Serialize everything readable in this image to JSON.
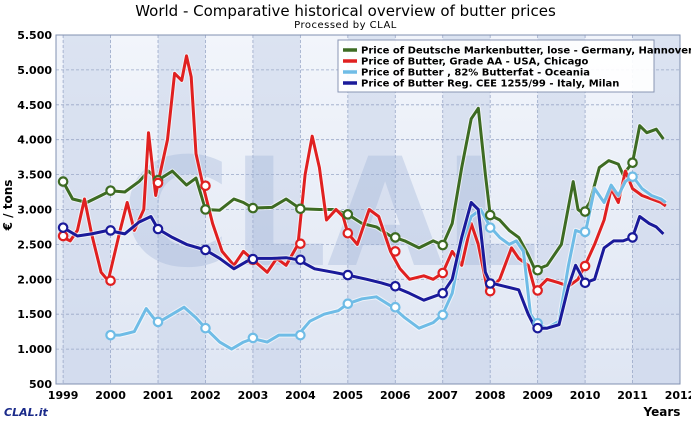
{
  "header": {
    "title": "World - Comparative historical overview of butter prices",
    "subtitle": "Processed by CLAL"
  },
  "logo_text": "CLAL.it",
  "chart_data": {
    "type": "line",
    "title": "World - Comparative historical overview of butter prices",
    "subtitle": "Processed by CLAL",
    "ylabel": "€ / tons",
    "xlabel": "Years",
    "xlim": [
      1998.85,
      2012.0
    ],
    "ylim": [
      500,
      5500
    ],
    "x_ticks": [
      "1999",
      "2000",
      "2001",
      "2002",
      "2003",
      "2004",
      "2005",
      "2006",
      "2007",
      "2008",
      "2009",
      "2010",
      "2011",
      "2012"
    ],
    "y_ticks": [
      "500",
      "1.000",
      "1.500",
      "2.000",
      "2.500",
      "3.000",
      "3.500",
      "4.000",
      "4.500",
      "5.000",
      "5.500"
    ],
    "grid": true,
    "legend_position": "top-right",
    "series": [
      {
        "name": "Price of Deutsche Markenbutter, lose - Germany, Hannover",
        "color": "#3d6b22",
        "points": [
          [
            1999.0,
            3400
          ],
          [
            1999.2,
            3150
          ],
          [
            1999.5,
            3100
          ],
          [
            1999.8,
            3200
          ],
          [
            2000.0,
            3270
          ],
          [
            2000.3,
            3250
          ],
          [
            2000.6,
            3400
          ],
          [
            2000.8,
            3550
          ],
          [
            2001.0,
            3420
          ],
          [
            2001.3,
            3550
          ],
          [
            2001.6,
            3350
          ],
          [
            2001.8,
            3450
          ],
          [
            2002.0,
            3000
          ],
          [
            2002.3,
            2990
          ],
          [
            2002.6,
            3150
          ],
          [
            2002.8,
            3100
          ],
          [
            2003.0,
            3020
          ],
          [
            2003.4,
            3030
          ],
          [
            2003.7,
            3150
          ],
          [
            2004.0,
            3010
          ],
          [
            2004.4,
            3000
          ],
          [
            2004.7,
            3000
          ],
          [
            2005.0,
            2930
          ],
          [
            2005.3,
            2800
          ],
          [
            2005.6,
            2750
          ],
          [
            2005.9,
            2620
          ],
          [
            2006.2,
            2550
          ],
          [
            2006.5,
            2450
          ],
          [
            2006.8,
            2550
          ],
          [
            2007.0,
            2490
          ],
          [
            2007.2,
            2800
          ],
          [
            2007.4,
            3600
          ],
          [
            2007.6,
            4300
          ],
          [
            2007.75,
            4450
          ],
          [
            2007.9,
            3500
          ],
          [
            2008.0,
            2920
          ],
          [
            2008.2,
            2850
          ],
          [
            2008.4,
            2700
          ],
          [
            2008.6,
            2600
          ],
          [
            2008.8,
            2350
          ],
          [
            2008.95,
            2130
          ],
          [
            2009.2,
            2200
          ],
          [
            2009.5,
            2500
          ],
          [
            2009.75,
            3400
          ],
          [
            2009.85,
            3000
          ],
          [
            2009.95,
            2950
          ],
          [
            2010.1,
            3100
          ],
          [
            2010.3,
            3600
          ],
          [
            2010.5,
            3700
          ],
          [
            2010.7,
            3650
          ],
          [
            2010.8,
            3500
          ],
          [
            2011.0,
            3670
          ],
          [
            2011.15,
            4200
          ],
          [
            2011.3,
            4100
          ],
          [
            2011.5,
            4150
          ],
          [
            2011.65,
            4010
          ]
        ]
      },
      {
        "name": "Price of Butter, Grade AA - USA, Chicago",
        "color": "#e02020",
        "points": [
          [
            1999.0,
            2600
          ],
          [
            1999.15,
            2550
          ],
          [
            1999.3,
            2700
          ],
          [
            1999.45,
            3150
          ],
          [
            1999.6,
            2650
          ],
          [
            1999.8,
            2100
          ],
          [
            1999.95,
            1980
          ],
          [
            2000.2,
            2700
          ],
          [
            2000.35,
            3100
          ],
          [
            2000.5,
            2700
          ],
          [
            2000.7,
            3000
          ],
          [
            2000.8,
            4100
          ],
          [
            2000.95,
            3200
          ],
          [
            2001.0,
            3380
          ],
          [
            2001.2,
            4000
          ],
          [
            2001.35,
            4950
          ],
          [
            2001.5,
            4850
          ],
          [
            2001.6,
            5200
          ],
          [
            2001.7,
            4900
          ],
          [
            2001.8,
            3800
          ],
          [
            2001.95,
            3340
          ],
          [
            2002.15,
            2800
          ],
          [
            2002.35,
            2400
          ],
          [
            2002.6,
            2200
          ],
          [
            2002.8,
            2400
          ],
          [
            2003.0,
            2280
          ],
          [
            2003.3,
            2100
          ],
          [
            2003.5,
            2300
          ],
          [
            2003.7,
            2200
          ],
          [
            2003.95,
            2500
          ],
          [
            2004.1,
            3500
          ],
          [
            2004.25,
            4050
          ],
          [
            2004.4,
            3600
          ],
          [
            2004.55,
            2850
          ],
          [
            2004.75,
            3000
          ],
          [
            2004.9,
            2900
          ],
          [
            2005.0,
            2660
          ],
          [
            2005.2,
            2500
          ],
          [
            2005.45,
            3000
          ],
          [
            2005.65,
            2900
          ],
          [
            2005.9,
            2400
          ],
          [
            2006.1,
            2150
          ],
          [
            2006.3,
            2000
          ],
          [
            2006.6,
            2050
          ],
          [
            2006.8,
            2000
          ],
          [
            2007.0,
            2090
          ],
          [
            2007.2,
            2400
          ],
          [
            2007.4,
            2200
          ],
          [
            2007.6,
            2800
          ],
          [
            2007.75,
            2500
          ],
          [
            2007.95,
            1830
          ],
          [
            2008.2,
            2000
          ],
          [
            2008.45,
            2450
          ],
          [
            2008.6,
            2300
          ],
          [
            2008.8,
            2200
          ],
          [
            2008.95,
            1830
          ],
          [
            2009.2,
            2000
          ],
          [
            2009.45,
            1950
          ],
          [
            2009.65,
            1900
          ],
          [
            2009.85,
            2000
          ],
          [
            2010.0,
            2200
          ],
          [
            2010.2,
            2500
          ],
          [
            2010.4,
            2850
          ],
          [
            2010.55,
            3300
          ],
          [
            2010.7,
            3100
          ],
          [
            2010.85,
            3550
          ],
          [
            2011.0,
            3300
          ],
          [
            2011.2,
            3200
          ],
          [
            2011.4,
            3150
          ],
          [
            2011.6,
            3100
          ],
          [
            2011.7,
            3050
          ]
        ]
      },
      {
        "name": "Price of Butter , 82% Butterfat - Oceania",
        "color": "#6fbce6",
        "points": [
          [
            1999.95,
            1200
          ],
          [
            2000.2,
            1200
          ],
          [
            2000.5,
            1250
          ],
          [
            2000.75,
            1580
          ],
          [
            2000.9,
            1450
          ],
          [
            2001.0,
            1380
          ],
          [
            2001.3,
            1500
          ],
          [
            2001.55,
            1600
          ],
          [
            2001.8,
            1450
          ],
          [
            2002.0,
            1300
          ],
          [
            2002.3,
            1100
          ],
          [
            2002.55,
            1000
          ],
          [
            2002.8,
            1100
          ],
          [
            2003.0,
            1150
          ],
          [
            2003.3,
            1100
          ],
          [
            2003.55,
            1200
          ],
          [
            2003.8,
            1200
          ],
          [
            2003.95,
            1200
          ],
          [
            2004.2,
            1400
          ],
          [
            2004.5,
            1500
          ],
          [
            2004.8,
            1550
          ],
          [
            2005.0,
            1650
          ],
          [
            2005.3,
            1720
          ],
          [
            2005.6,
            1750
          ],
          [
            2005.95,
            1600
          ],
          [
            2006.2,
            1450
          ],
          [
            2006.5,
            1300
          ],
          [
            2006.8,
            1380
          ],
          [
            2007.0,
            1500
          ],
          [
            2007.2,
            1800
          ],
          [
            2007.4,
            2500
          ],
          [
            2007.6,
            2900
          ],
          [
            2007.8,
            3000
          ],
          [
            2008.0,
            2750
          ],
          [
            2008.2,
            2600
          ],
          [
            2008.4,
            2500
          ],
          [
            2008.55,
            2550
          ],
          [
            2008.7,
            2400
          ],
          [
            2008.85,
            1500
          ],
          [
            2009.0,
            1350
          ],
          [
            2009.2,
            1300
          ],
          [
            2009.45,
            1400
          ],
          [
            2009.65,
            2200
          ],
          [
            2009.8,
            2700
          ],
          [
            2010.0,
            2650
          ],
          [
            2010.2,
            3300
          ],
          [
            2010.4,
            3100
          ],
          [
            2010.55,
            3350
          ],
          [
            2010.7,
            3200
          ],
          [
            2010.85,
            3400
          ],
          [
            2011.0,
            3480
          ],
          [
            2011.2,
            3300
          ],
          [
            2011.4,
            3200
          ],
          [
            2011.6,
            3150
          ],
          [
            2011.7,
            3100
          ]
        ]
      },
      {
        "name": "Price of Butter Reg. CEE 1255/99 - Italy, Milan",
        "color": "#1a1a9a",
        "points": [
          [
            1999.0,
            2740
          ],
          [
            1999.3,
            2620
          ],
          [
            1999.6,
            2650
          ],
          [
            1999.95,
            2700
          ],
          [
            2000.3,
            2650
          ],
          [
            2000.6,
            2820
          ],
          [
            2000.85,
            2900
          ],
          [
            2001.0,
            2720
          ],
          [
            2001.3,
            2600
          ],
          [
            2001.6,
            2500
          ],
          [
            2002.0,
            2420
          ],
          [
            2002.3,
            2300
          ],
          [
            2002.6,
            2150
          ],
          [
            2002.85,
            2250
          ],
          [
            2003.0,
            2300
          ],
          [
            2003.4,
            2300
          ],
          [
            2003.7,
            2310
          ],
          [
            2003.95,
            2280
          ],
          [
            2004.3,
            2150
          ],
          [
            2004.7,
            2100
          ],
          [
            2005.0,
            2060
          ],
          [
            2005.4,
            2000
          ],
          [
            2005.7,
            1950
          ],
          [
            2005.95,
            1900
          ],
          [
            2006.3,
            1800
          ],
          [
            2006.6,
            1700
          ],
          [
            2007.0,
            1800
          ],
          [
            2007.2,
            2000
          ],
          [
            2007.4,
            2600
          ],
          [
            2007.6,
            3100
          ],
          [
            2007.75,
            3000
          ],
          [
            2007.9,
            2100
          ],
          [
            2008.0,
            1950
          ],
          [
            2008.3,
            1900
          ],
          [
            2008.6,
            1850
          ],
          [
            2008.8,
            1500
          ],
          [
            2008.95,
            1300
          ],
          [
            2009.2,
            1300
          ],
          [
            2009.45,
            1350
          ],
          [
            2009.65,
            1900
          ],
          [
            2009.8,
            2200
          ],
          [
            2010.0,
            1950
          ],
          [
            2010.2,
            2000
          ],
          [
            2010.4,
            2450
          ],
          [
            2010.6,
            2550
          ],
          [
            2010.8,
            2550
          ],
          [
            2011.0,
            2600
          ],
          [
            2011.15,
            2900
          ],
          [
            2011.35,
            2800
          ],
          [
            2011.5,
            2750
          ],
          [
            2011.65,
            2650
          ]
        ]
      }
    ],
    "markers": {
      "Price of Deutsche Markenbutter, lose - Germany, Hannover": [
        [
          1999.0,
          3400
        ],
        [
          2000.0,
          3270
        ],
        [
          2001.0,
          3420
        ],
        [
          2002.0,
          3000
        ],
        [
          2003.0,
          3020
        ],
        [
          2004.0,
          3010
        ],
        [
          2005.0,
          2930
        ],
        [
          2006.0,
          2600
        ],
        [
          2007.0,
          2490
        ],
        [
          2008.0,
          2920
        ],
        [
          2009.0,
          2130
        ],
        [
          2010.0,
          2970
        ],
        [
          2011.0,
          3670
        ]
      ],
      "Price of Butter, Grade AA - USA, Chicago": [
        [
          1999.0,
          2620
        ],
        [
          2000.0,
          1980
        ],
        [
          2001.0,
          3380
        ],
        [
          2002.0,
          3340
        ],
        [
          2003.0,
          2280
        ],
        [
          2004.0,
          2510
        ],
        [
          2005.0,
          2660
        ],
        [
          2006.0,
          2400
        ],
        [
          2007.0,
          2090
        ],
        [
          2008.0,
          1830
        ],
        [
          2009.0,
          1840
        ],
        [
          2010.0,
          2190
        ]
      ],
      "Price of Butter , 82% Butterfat - Oceania": [
        [
          2000.0,
          1200
        ],
        [
          2001.0,
          1390
        ],
        [
          2002.0,
          1300
        ],
        [
          2003.0,
          1160
        ],
        [
          2004.0,
          1200
        ],
        [
          2005.0,
          1650
        ],
        [
          2006.0,
          1600
        ],
        [
          2007.0,
          1490
        ],
        [
          2008.0,
          2740
        ],
        [
          2009.0,
          1370
        ],
        [
          2010.0,
          2680
        ],
        [
          2011.0,
          3470
        ]
      ],
      "Price of Butter Reg. CEE 1255/99 - Italy, Milan": [
        [
          1999.0,
          2740
        ],
        [
          2000.0,
          2700
        ],
        [
          2001.0,
          2720
        ],
        [
          2002.0,
          2420
        ],
        [
          2003.0,
          2290
        ],
        [
          2004.0,
          2280
        ],
        [
          2005.0,
          2060
        ],
        [
          2006.0,
          1900
        ],
        [
          2007.0,
          1800
        ],
        [
          2008.0,
          1940
        ],
        [
          2009.0,
          1300
        ],
        [
          2010.0,
          1950
        ],
        [
          2011.0,
          2600
        ]
      ]
    }
  }
}
